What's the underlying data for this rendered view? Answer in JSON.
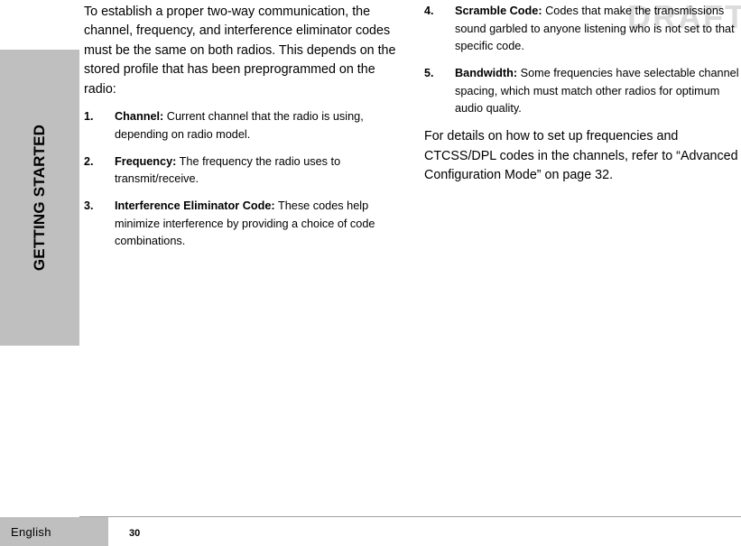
{
  "sidebar": {
    "section_title": "GETTING STARTED"
  },
  "watermark": "DRAFT",
  "left": {
    "intro": "To establish a proper two-way communication, the channel, frequency, and interference eliminator codes must be the same on both radios. This depends on the stored profile that has been preprogrammed on the radio:",
    "items": [
      {
        "num": "1.",
        "title": "Channel:",
        "body": " Current channel that the radio is using, depending on radio model."
      },
      {
        "num": "2.",
        "title": "Frequency:",
        "body": " The frequency the radio uses to transmit/receive."
      },
      {
        "num": "3.",
        "title": "Interference Eliminator Code:",
        "body": " These codes help minimize interference by providing a choice of code combinations."
      }
    ]
  },
  "right": {
    "items": [
      {
        "num": "4.",
        "title": "Scramble Code:",
        "body": " Codes that make the transmissions sound garbled to anyone listening who is not set to that specific code."
      },
      {
        "num": "5.",
        "title": "Bandwidth:",
        "body": " Some frequencies have selectable channel spacing, which must match other radios for optimum audio quality."
      }
    ],
    "closing": "For details on how to set up frequencies and CTCSS/DPL codes in the channels, refer to “Advanced Configuration Mode” on page 32."
  },
  "footer": {
    "language": "English",
    "page_number": "30"
  },
  "colors": {
    "sidebar_bg": "#bfbfbf",
    "page_bg": "#ffffff"
  }
}
